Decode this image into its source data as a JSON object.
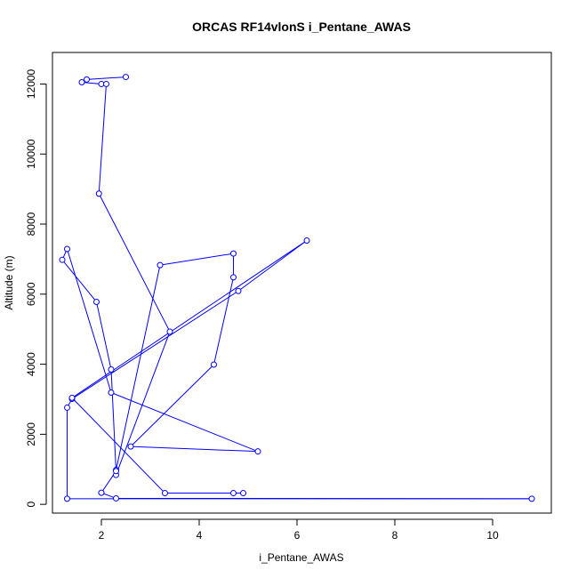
{
  "chart_data": {
    "type": "line",
    "title": "ORCAS RF14vlonS i_Pentane_AWAS",
    "xlabel": "i_Pentane_AWAS",
    "ylabel": "Altitude (m)",
    "xlim": [
      1.0,
      11.2
    ],
    "ylim": [
      -250,
      12900
    ],
    "xticks": [
      2,
      4,
      6,
      8,
      10
    ],
    "yticks": [
      0,
      2000,
      4000,
      6000,
      8000,
      10000,
      12000
    ],
    "grid": false,
    "legend": "none",
    "colors": {
      "series": "#0000ff"
    },
    "series": [
      {
        "points": [
          [
            2.5,
            12200
          ],
          [
            1.7,
            12130
          ],
          [
            1.6,
            12050
          ],
          [
            2.0,
            12000
          ],
          [
            2.1,
            12000
          ],
          [
            1.95,
            8870
          ],
          [
            3.4,
            4930
          ],
          [
            2.3,
            840
          ],
          [
            2.3,
            980
          ],
          [
            3.2,
            6830
          ],
          [
            4.7,
            7160
          ],
          [
            4.7,
            6480
          ],
          [
            4.3,
            3990
          ],
          [
            2.6,
            1650
          ],
          [
            5.2,
            1510
          ],
          [
            2.2,
            3190
          ],
          [
            1.3,
            7290
          ],
          [
            1.2,
            6980
          ],
          [
            1.9,
            5780
          ],
          [
            2.2,
            3850
          ],
          [
            2.3,
            950
          ],
          [
            2.0,
            330
          ],
          [
            2.3,
            170
          ],
          [
            10.8,
            160
          ],
          [
            1.3,
            160
          ],
          [
            1.3,
            2760
          ],
          [
            1.4,
            3010
          ],
          [
            4.8,
            6090
          ],
          [
            6.2,
            7530
          ],
          [
            1.4,
            3040
          ],
          [
            3.3,
            320
          ],
          [
            4.7,
            320
          ],
          [
            4.9,
            320
          ]
        ]
      }
    ]
  }
}
